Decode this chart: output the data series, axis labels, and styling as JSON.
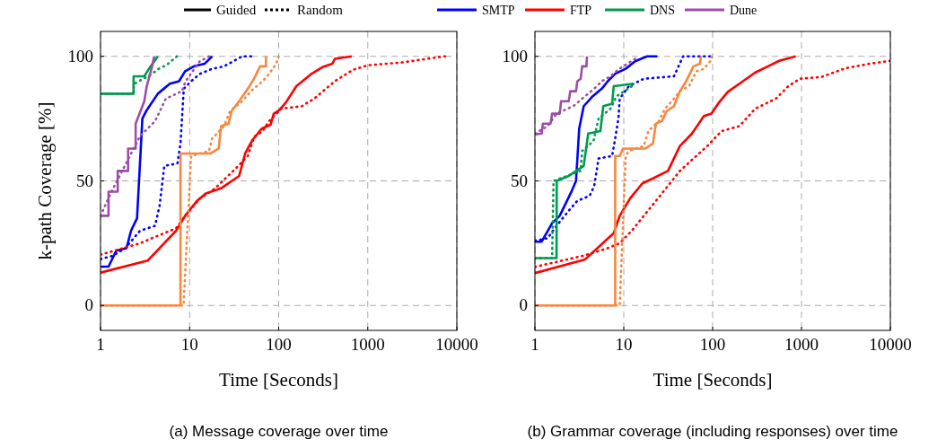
{
  "chart_data": [
    {
      "type": "line",
      "title": "(a) Message coverage over time",
      "xlabel": "Time [Seconds]",
      "ylabel": "k-path Coverage [%]",
      "log": "x",
      "xlim": [
        1,
        10000
      ],
      "xticks": [
        1,
        10,
        100,
        1000,
        10000
      ],
      "ylim": [
        -10,
        110
      ],
      "yticks": [
        0,
        50,
        100
      ],
      "grid": true,
      "legend": "top",
      "annotations": [
        "Guided",
        "Random"
      ],
      "series": [
        {
          "name": "SMTP",
          "color": "#0000ff",
          "line_style": "solid",
          "x": [
            1,
            1.23,
            1.5,
            1.96,
            2.2,
            2.57,
            2.95,
            3.25,
            4.4,
            6.0,
            7.6,
            8.9,
            11.2,
            14.7,
            17.9
          ],
          "values": [
            15.6,
            15.6,
            22,
            23,
            30,
            35,
            75,
            78,
            85,
            89,
            90,
            94,
            96,
            97,
            100
          ]
        },
        {
          "color": "#0000ff",
          "line_style": "dotted",
          "x": [
            1,
            1.38,
            1.89,
            2.78,
            4.1,
            4.6,
            5.2,
            7.3,
            7.9,
            8.6,
            10.4,
            13.1,
            17.9,
            24.4,
            38.9,
            49
          ],
          "values": [
            18.6,
            20,
            23,
            30,
            32,
            40,
            56,
            57,
            65,
            87,
            90,
            93,
            95,
            96,
            100,
            100
          ]
        },
        {
          "name": "FTP",
          "color": "#ff0000",
          "line_style": "solid",
          "x": [
            1,
            3.38,
            7.05,
            8.9,
            12.1,
            15.3,
            22.5,
            36,
            42,
            51,
            64.5,
            81,
            88,
            102,
            120,
            158,
            230,
            315,
            400,
            427,
            660
          ],
          "values": [
            13.2,
            18,
            30,
            36,
            42,
            45,
            47,
            52,
            61,
            66.5,
            71,
            72.5,
            77,
            78.4,
            81.4,
            88,
            92.8,
            95.8,
            97,
            99,
            100
          ]
        },
        {
          "color": "#ff0000",
          "line_style": "dotted",
          "x": [
            1,
            2.78,
            7.05,
            8.9,
            13.1,
            19.3,
            33,
            45,
            53,
            66,
            78,
            107,
            182,
            250,
            427,
            680,
            1000,
            2500,
            5500,
            7400
          ],
          "values": [
            20.4,
            25,
            31,
            36,
            43,
            47,
            55,
            60,
            67.7,
            70,
            74,
            79,
            80,
            83,
            90,
            94.6,
            96.4,
            97.6,
            99.4,
            100
          ]
        },
        {
          "name": "DNS",
          "color": "#009a4c",
          "line_style": "solid",
          "x": [
            1,
            2.35,
            2.35,
            3.1,
            3.5,
            4.4
          ],
          "values": [
            85,
            85,
            92,
            92,
            95,
            100
          ]
        },
        {
          "color": "#009a4c",
          "line_style": "dotted",
          "x": [
            1,
            2.3,
            2.4,
            3.8,
            4.5,
            5.5,
            7.2
          ],
          "values": [
            85,
            85,
            89,
            93,
            95,
            96.5,
            100
          ]
        },
        {
          "color": "#f7873f",
          "line_style": "solid",
          "x": [
            1,
            7.9,
            7.9,
            17.2,
            21.2,
            22.6,
            27.4,
            29.6,
            35.9,
            45,
            52.8,
            61.8,
            71.9,
            72
          ],
          "values": [
            0,
            0,
            61,
            61,
            63,
            72,
            73,
            78,
            82,
            87,
            91,
            96,
            96,
            100
          ]
        },
        {
          "color": "#f7873f",
          "line_style": "dotted",
          "x": [
            1,
            8.55,
            10.4,
            16.5,
            17.9,
            24.4,
            28.4,
            38.9,
            48.7,
            66,
            78,
            94,
            100
          ],
          "values": [
            0,
            0,
            60,
            62,
            67,
            72,
            78,
            82,
            86,
            90,
            93,
            97,
            100
          ]
        },
        {
          "name": "Dune",
          "color": "#9b4ea6",
          "line_style": "solid",
          "x": [
            1,
            1.23,
            1.23,
            1.56,
            1.56,
            2.04,
            2.04,
            2.48,
            2.48,
            3.1,
            3.3,
            3.8,
            4.0
          ],
          "values": [
            36,
            36,
            45.7,
            45.7,
            54,
            54,
            63,
            63,
            73,
            82,
            88,
            96,
            100
          ]
        },
        {
          "color": "#9b4ea6",
          "line_style": "dotted",
          "x": [
            1,
            1.3,
            1.75,
            2.78,
            4.1,
            5.4,
            8.2,
            9,
            13,
            16.5
          ],
          "values": [
            36,
            45,
            54,
            68,
            74,
            83,
            86,
            90,
            98,
            100
          ]
        }
      ]
    },
    {
      "type": "line",
      "title": "(b) Grammar coverage (including responses) over time",
      "xlabel": "Time [Seconds]",
      "log": "x",
      "xlim": [
        1,
        10000
      ],
      "xticks": [
        1,
        10,
        100,
        1000,
        10000
      ],
      "ylim": [
        -10,
        110
      ],
      "yticks": [
        0,
        50,
        100
      ],
      "grid": true,
      "series": [
        {
          "color": "#0000ff",
          "line_style": "solid",
          "x": [
            1,
            1.19,
            1.56,
            1.9,
            2.6,
            2.9,
            3.15,
            3.54,
            4.47,
            5.65,
            6.6,
            8.0,
            10.5,
            13.4,
            18.3,
            23.9
          ],
          "values": [
            25.6,
            25.6,
            33,
            36,
            46,
            50,
            71,
            80,
            84,
            87,
            90,
            93,
            95,
            98,
            100,
            100
          ]
        },
        {
          "color": "#0000ff",
          "line_style": "dotted",
          "x": [
            1,
            1.39,
            1.75,
            2.4,
            3.0,
            4.13,
            4.65,
            5.2,
            7.4,
            8.0,
            8.7,
            9.0,
            11.4,
            16.8,
            36.7,
            46.5,
            93.8
          ],
          "values": [
            26,
            27,
            32,
            38,
            42,
            44,
            48,
            59,
            60,
            67,
            75,
            83,
            88,
            91,
            92,
            100,
            100
          ]
        },
        {
          "color": "#ff0000",
          "line_style": "solid",
          "x": [
            1,
            3.67,
            7.7,
            9.0,
            11.8,
            16.2,
            21.3,
            31.4,
            42.8,
            58.5,
            79.8,
            97,
            118,
            148,
            219,
            302,
            410,
            560,
            860
          ],
          "values": [
            13,
            18.5,
            29,
            36,
            43,
            49,
            51,
            54,
            64,
            69,
            76,
            77,
            81.5,
            85.7,
            90,
            93.5,
            95.8,
            98.2,
            100
          ]
        },
        {
          "color": "#ff0000",
          "line_style": "dotted",
          "x": [
            1,
            3.54,
            6.6,
            9.0,
            12.3,
            16.8,
            23,
            31.4,
            42.8,
            60.8,
            87,
            126,
            200,
            302,
            515,
            710,
            960,
            1670,
            3100,
            5800,
            10000
          ],
          "values": [
            15.5,
            20,
            23,
            25,
            30,
            36,
            42,
            48,
            54,
            59,
            64,
            70,
            72,
            79,
            83,
            88,
            91,
            91.7,
            95.2,
            97,
            98.2
          ]
        },
        {
          "color": "#009a4c",
          "line_style": "solid",
          "x": [
            1,
            1.75,
            1.76,
            2.4,
            3.54,
            3.98,
            5.45,
            5.88,
            7.4,
            7.7,
            12.8
          ],
          "values": [
            19,
            19,
            50,
            52,
            56,
            69,
            70,
            80,
            81,
            88,
            89
          ]
        },
        {
          "color": "#009a4c",
          "line_style": "dotted",
          "x": [
            1,
            1.56,
            1.62,
            3.27,
            3.4,
            4.56,
            5.2,
            7.1,
            8.3,
            12.3
          ],
          "values": [
            19,
            19,
            50,
            54,
            62,
            66,
            75,
            79,
            84,
            88
          ]
        },
        {
          "color": "#f7873f",
          "line_style": "solid",
          "x": [
            1,
            8.0,
            8.0,
            9.0,
            9.8,
            17.5,
            21.3,
            23,
            26.9,
            30.3,
            36.7,
            42.8,
            50.3,
            60.8,
            71.8,
            74
          ],
          "values": [
            0,
            0,
            60,
            60,
            63,
            63,
            65,
            73,
            74,
            78,
            80,
            86,
            90,
            96,
            97,
            100
          ]
        },
        {
          "color": "#f7873f",
          "line_style": "dotted",
          "x": [
            1,
            9.0,
            10.5,
            11.4,
            16.8,
            18.9,
            24.8,
            29.1,
            36.7,
            42.8,
            54.2,
            65.8,
            79.8,
            93.8,
            97.7
          ],
          "values": [
            0,
            0,
            60,
            62,
            64,
            70,
            74,
            79,
            83,
            86,
            88,
            94,
            95,
            98,
            100
          ]
        },
        {
          "color": "#9b4ea6",
          "line_style": "solid",
          "x": [
            1,
            1.19,
            1.23,
            1.5,
            1.56,
            1.9,
            1.97,
            2.4,
            2.5,
            2.9,
            3.0,
            3.27,
            3.4,
            3.8,
            3.85
          ],
          "values": [
            68.7,
            69,
            73,
            73,
            77,
            77,
            82,
            82,
            86,
            86,
            90,
            91,
            96,
            96,
            100
          ]
        },
        {
          "color": "#9b4ea6",
          "line_style": "dotted",
          "x": [
            1,
            1.39,
            1.75,
            2.7,
            3.4,
            4.65,
            5.65,
            7.1,
            8.9,
            13.4
          ],
          "values": [
            69,
            72,
            77,
            80,
            83,
            87,
            90,
            92,
            95,
            99
          ]
        }
      ]
    }
  ]
}
